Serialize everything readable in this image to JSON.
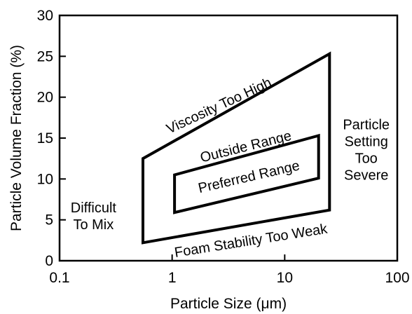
{
  "chart_data": {
    "type": "area",
    "title": "",
    "xlabel": "Particle Size (μm)",
    "ylabel": "Particle Volume Fraction (%)",
    "x_scale": "log",
    "xlim": [
      0.1,
      100
    ],
    "ylim": [
      0,
      30
    ],
    "x_ticks": [
      0.1,
      1,
      10,
      100
    ],
    "x_tick_labels": [
      "0.1",
      "1",
      "10",
      "100"
    ],
    "y_ticks": [
      0,
      5,
      10,
      15,
      20,
      25,
      30
    ],
    "y_tick_labels": [
      "0",
      "5",
      "10",
      "15",
      "20",
      "25",
      "30"
    ],
    "grid": false,
    "boundaries": [
      {
        "name": "Outside Range",
        "points": [
          [
            0.55,
            2.2
          ],
          [
            25,
            6.2
          ],
          [
            25,
            25.3
          ],
          [
            0.55,
            12.5
          ]
        ]
      },
      {
        "name": "Preferred Range",
        "points": [
          [
            1.05,
            5.9
          ],
          [
            20,
            10.1
          ],
          [
            20,
            15.3
          ],
          [
            1.05,
            10.5
          ]
        ]
      }
    ],
    "annotations": [
      {
        "id": "viscosity",
        "lines": [
          "Viscosity Too High"
        ],
        "x": 2.6,
        "y": 19.0,
        "rotation": -25
      },
      {
        "id": "outside",
        "lines": [
          "Outside Range"
        ],
        "x": 4.5,
        "y": 14.0,
        "rotation": -14
      },
      {
        "id": "preferred",
        "lines": [
          "Preferred Range"
        ],
        "x": 4.8,
        "y": 10.3,
        "rotation": -13
      },
      {
        "id": "foam",
        "lines": [
          "Foam Stability Too Weak"
        ],
        "x": 5.0,
        "y": 2.5,
        "rotation": -9
      },
      {
        "id": "difficult",
        "lines": [
          "Difficult",
          "To Mix"
        ],
        "x": 0.2,
        "y": 5.5,
        "rotation": 0
      },
      {
        "id": "setting",
        "lines": [
          "Particle",
          "Setting",
          "Too",
          "Severe"
        ],
        "x": 53,
        "y": 13.6,
        "rotation": 0
      }
    ]
  }
}
